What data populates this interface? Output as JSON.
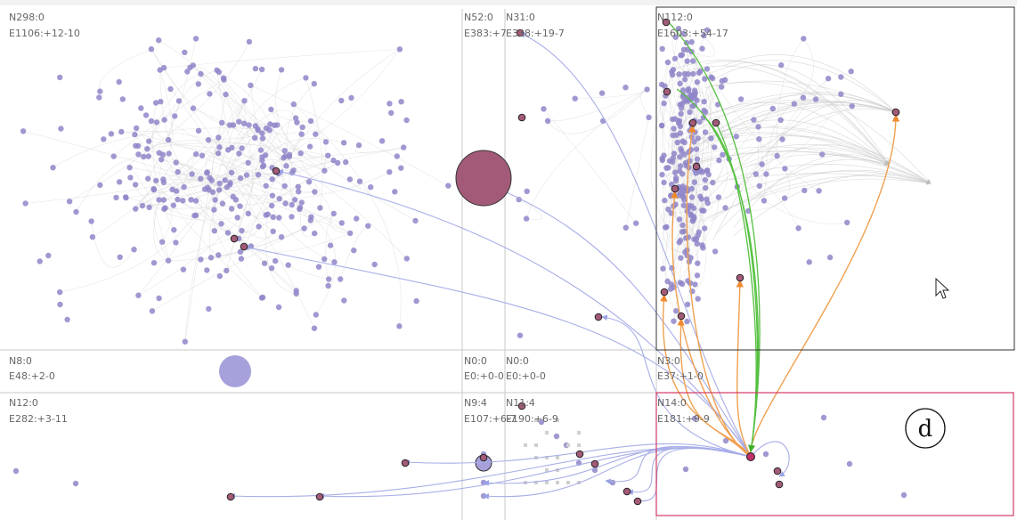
{
  "grid_cells": [
    {
      "id": "c00",
      "line1": "N298:0",
      "line2": "E1106:+12-10"
    },
    {
      "id": "c01",
      "line1": "N52:0",
      "line2": "E383:+7"
    },
    {
      "id": "c02",
      "line1": "N31:0",
      "line2": "E338:+19-7"
    },
    {
      "id": "c03",
      "line1": "N112:0",
      "line2": "E1603:+54-17"
    },
    {
      "id": "c10",
      "line1": "N8:0",
      "line2": "E48:+2-0"
    },
    {
      "id": "c11",
      "line1": "N0:0",
      "line2": "E0:+0-0"
    },
    {
      "id": "c12",
      "line1": "N0:0",
      "line2": "E0:+0-0"
    },
    {
      "id": "c13",
      "line1": "N3:0",
      "line2": "E37:+1-0"
    },
    {
      "id": "c20",
      "line1": "N12:0",
      "line2": "E282:+3-11"
    },
    {
      "id": "c21",
      "line1": "N9:4",
      "line2": "E107:+6-7"
    },
    {
      "id": "c22",
      "line1": "N11:4",
      "line2": "E190:+6-9"
    },
    {
      "id": "c23",
      "line1": "N14:0",
      "line2": "E181:+9-9"
    }
  ],
  "annotation": {
    "label": "d"
  },
  "colors": {
    "node": "#8f86c9",
    "highlight_node": "#a35a78",
    "edge_incoming": "#f0a050",
    "edge_green": "#55c040",
    "edge_blue": "#a8aee8",
    "edge_gray": "#d4d4d4",
    "selection_box": "#d23a63",
    "grid_line": "#c8c8c8"
  },
  "cursor": {
    "icon": "mouse-pointer-icon"
  }
}
